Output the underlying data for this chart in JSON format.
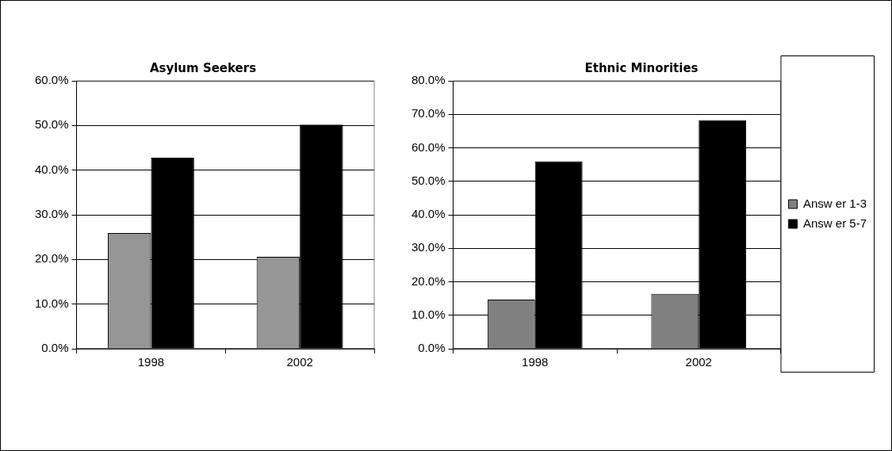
{
  "chart_data": [
    {
      "type": "bar",
      "title": "Asylum Seekers",
      "categories": [
        "1998",
        "2002"
      ],
      "series": [
        {
          "color": "#969696",
          "values": [
            25.9,
            20.6
          ]
        },
        {
          "color": "#000000",
          "values": [
            42.8,
            50.2
          ]
        }
      ],
      "ylim": [
        0,
        60
      ],
      "yticks": [
        {
          "value": 0,
          "label": "0.0%"
        },
        {
          "value": 10,
          "label": "10.0%"
        },
        {
          "value": 20,
          "label": "20.0%"
        },
        {
          "value": 30,
          "label": "30.0%"
        },
        {
          "value": 40,
          "label": "40.0%"
        },
        {
          "value": 50,
          "label": "50.0%"
        },
        {
          "value": 60,
          "label": "60.0%"
        }
      ],
      "grid": "y",
      "legend": false
    },
    {
      "type": "bar",
      "title": "Ethnic Minorities",
      "categories": [
        "1998",
        "2002"
      ],
      "series": [
        {
          "name": "Answ er 1-3",
          "color": "#808080",
          "values": [
            14.7,
            16.4
          ]
        },
        {
          "name": "Answ er 5-7",
          "color": "#000000",
          "values": [
            56.0,
            68.3
          ]
        }
      ],
      "ylim": [
        0,
        80
      ],
      "yticks": [
        {
          "value": 0,
          "label": "0.0%"
        },
        {
          "value": 10,
          "label": "10.0%"
        },
        {
          "value": 20,
          "label": "20.0%"
        },
        {
          "value": 30,
          "label": "30.0%"
        },
        {
          "value": 40,
          "label": "40.0%"
        },
        {
          "value": 50,
          "label": "50.0%"
        },
        {
          "value": 60,
          "label": "60.0%"
        },
        {
          "value": 70,
          "label": "70.0%"
        },
        {
          "value": 80,
          "label": "80.0%"
        }
      ],
      "grid": "y",
      "legend": "right"
    }
  ]
}
